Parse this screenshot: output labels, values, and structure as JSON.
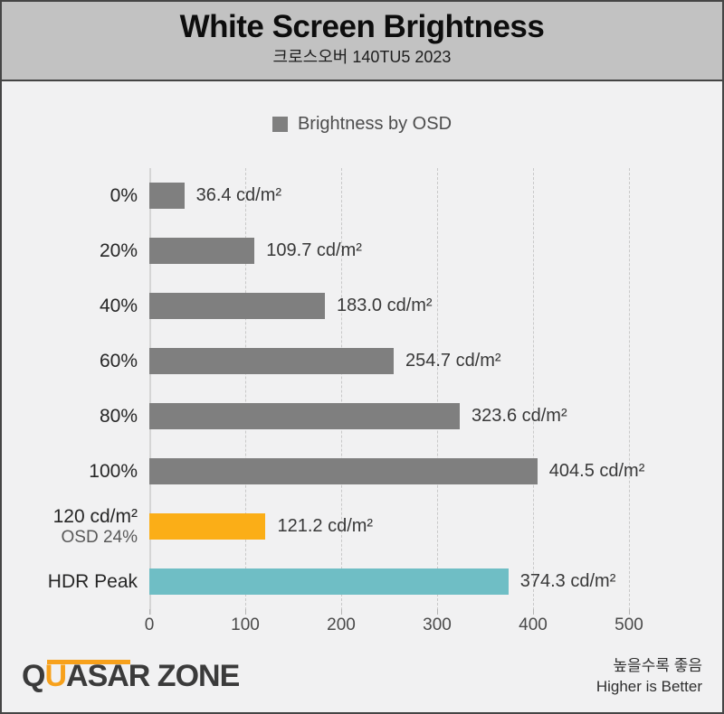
{
  "header": {
    "title": "White Screen Brightness",
    "subtitle": "크로스오버 140TU5 2023"
  },
  "legend": {
    "label": "Brightness by OSD",
    "swatch_color": "#7f7f7f"
  },
  "chart_data": {
    "type": "bar",
    "orientation": "horizontal",
    "title": "White Screen Brightness",
    "subtitle": "크로스오버 140TU5 2023",
    "legend": [
      "Brightness by OSD"
    ],
    "legend_position": "top-center",
    "grid": "vertical-dashed",
    "unit": "cd/m²",
    "xlim": [
      0,
      500
    ],
    "x_ticks": [
      0,
      100,
      200,
      300,
      400,
      500
    ],
    "categories": [
      "0%",
      "20%",
      "40%",
      "60%",
      "80%",
      "100%",
      "120 cd/m²",
      "HDR Peak"
    ],
    "category_sublabels": [
      "",
      "",
      "",
      "",
      "",
      "",
      "OSD 24%",
      ""
    ],
    "values": [
      36.4,
      109.7,
      183.0,
      254.7,
      323.6,
      404.5,
      121.2,
      374.3
    ],
    "value_labels": [
      "36.4 cd/m²",
      "109.7 cd/m²",
      "183.0 cd/m²",
      "254.7 cd/m²",
      "323.6 cd/m²",
      "404.5 cd/m²",
      "121.2 cd/m²",
      "374.3 cd/m²"
    ],
    "bar_colors": [
      "#7f7f7f",
      "#7f7f7f",
      "#7f7f7f",
      "#7f7f7f",
      "#7f7f7f",
      "#7f7f7f",
      "#fbae17",
      "#6fbec5"
    ]
  },
  "colors": {
    "header_bg": "#c2c2c2",
    "body_bg": "#f1f1f2",
    "bar_gray": "#7f7f7f",
    "bar_orange": "#fbae17",
    "bar_teal": "#6fbec5",
    "logo_accent": "#f7a11c"
  },
  "footer": {
    "logo": {
      "q": "Q",
      "u": "U",
      "asar": "ASAR",
      "zone": " ZONE"
    },
    "note_line1": "높을수록 좋음",
    "note_line2": "Higher is Better"
  }
}
